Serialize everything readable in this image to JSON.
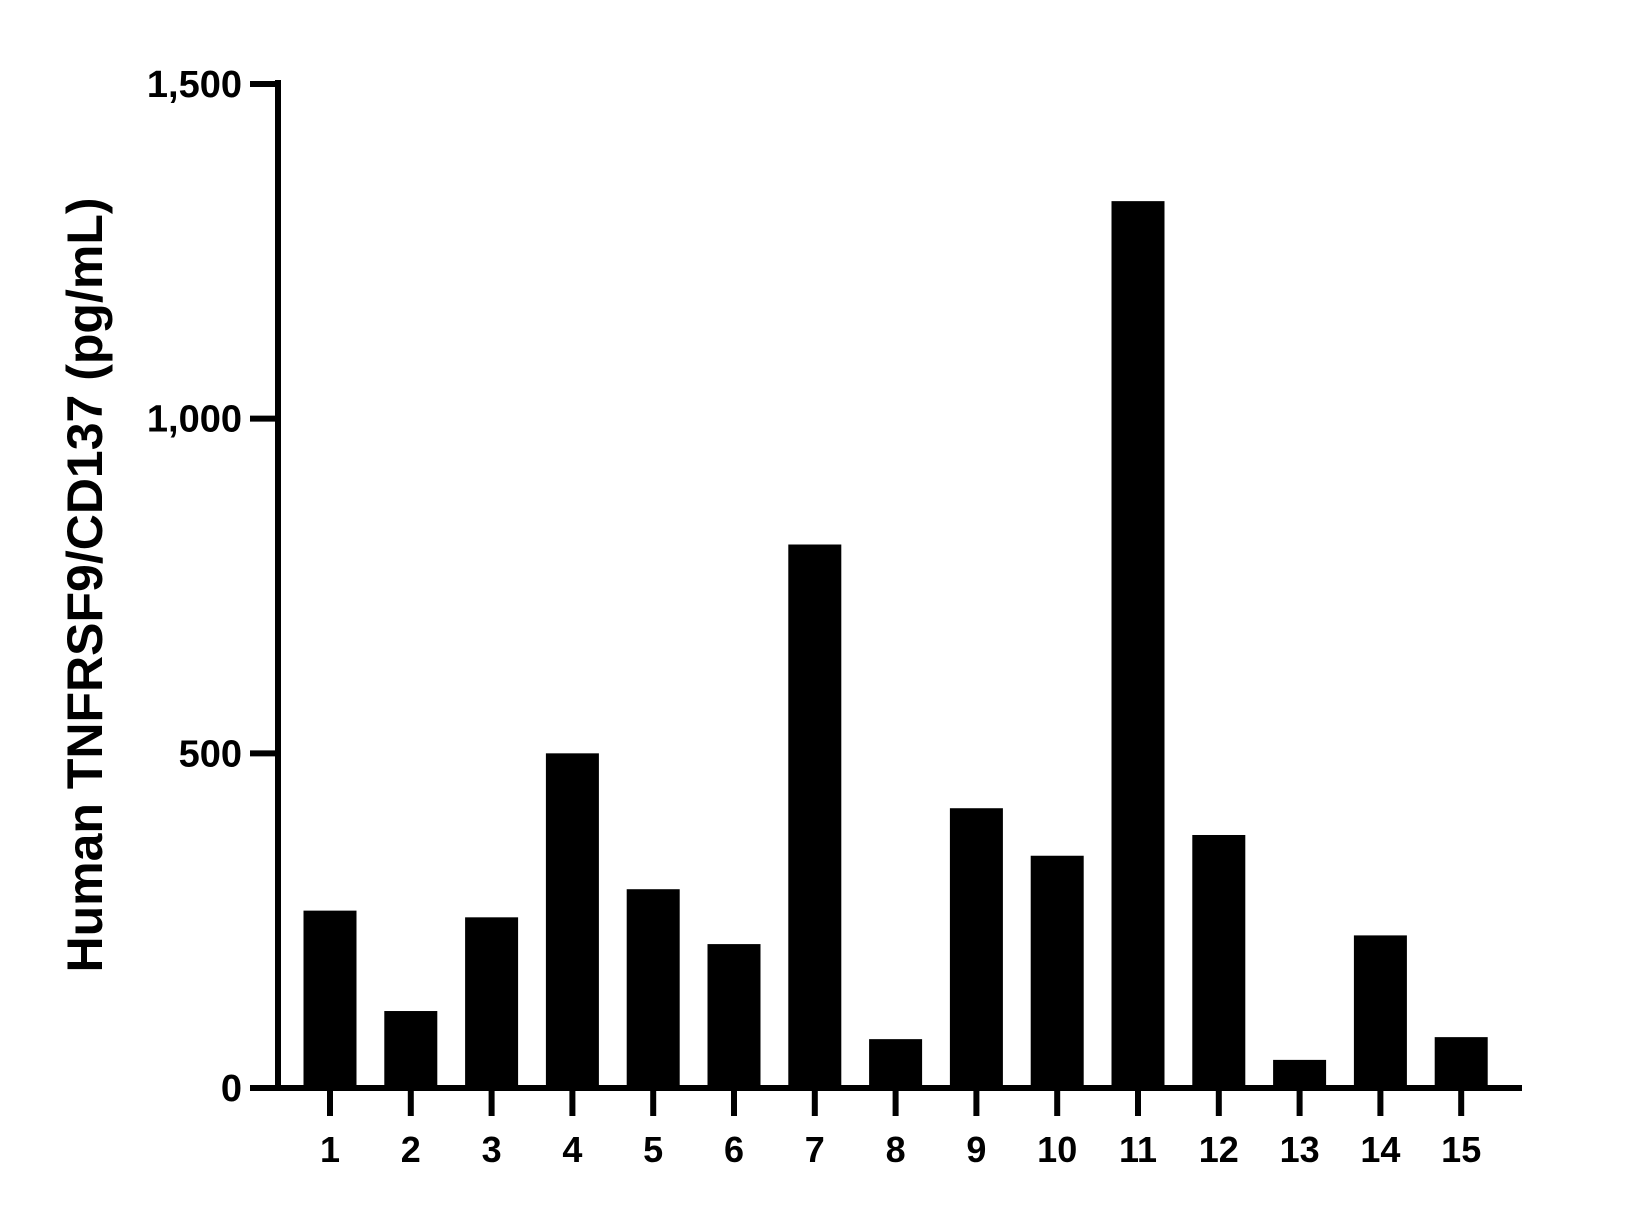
{
  "chart_data": {
    "type": "bar",
    "title": "",
    "xlabel": "",
    "ylabel": "Human TNFRSF9/CD137 (pg/mL)",
    "categories": [
      "1",
      "2",
      "3",
      "4",
      "5",
      "6",
      "7",
      "8",
      "9",
      "10",
      "11",
      "12",
      "13",
      "14",
      "15"
    ],
    "values": [
      265,
      115,
      255,
      500,
      297,
      215,
      812,
      73,
      418,
      347,
      1325,
      378,
      42,
      228,
      76
    ],
    "ylim": [
      0,
      1500
    ],
    "yticks": [
      0,
      500,
      1000,
      1500
    ],
    "ytick_labels": [
      "0",
      "500",
      "1,000",
      "1,500"
    ],
    "grid": false,
    "legend": "none",
    "bar_color": "#000000"
  }
}
